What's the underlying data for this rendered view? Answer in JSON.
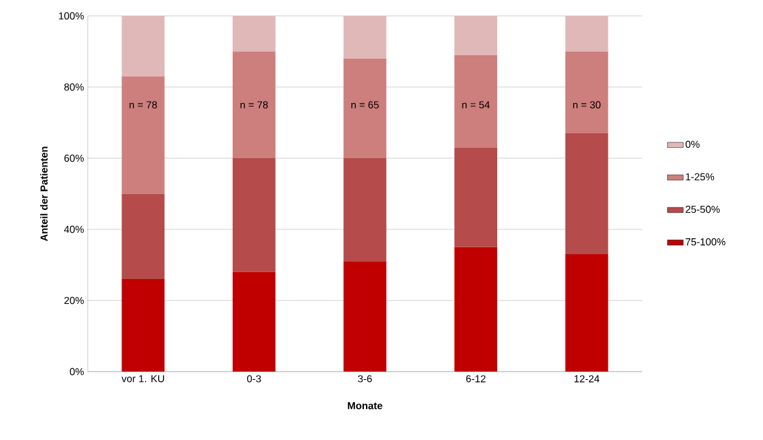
{
  "chart_data": {
    "type": "bar",
    "stacked": true,
    "xlabel": "Monate",
    "ylabel": "Anteil der Patienten",
    "categories": [
      "vor 1. KU",
      "0-3",
      "3-6",
      "6-12",
      "12-24"
    ],
    "series": [
      {
        "name": "75-100%",
        "color": "#c00000",
        "values": [
          26,
          28,
          31,
          35,
          33
        ]
      },
      {
        "name": "25-50%",
        "color": "#b54b4a",
        "values": [
          24,
          32,
          29,
          28,
          34
        ]
      },
      {
        "name": "1-25%",
        "color": "#cd7f7d",
        "values": [
          33,
          30,
          28,
          26,
          23
        ]
      },
      {
        "name": "0%",
        "color": "#e0b8b8",
        "values": [
          17,
          10,
          12,
          11,
          10
        ]
      }
    ],
    "ylim": [
      0,
      100
    ],
    "yticks": [
      {
        "value": 0,
        "label": "0%"
      },
      {
        "value": 20,
        "label": "20%"
      },
      {
        "value": 40,
        "label": "40%"
      },
      {
        "value": 60,
        "label": "60%"
      },
      {
        "value": 80,
        "label": "80%"
      },
      {
        "value": 100,
        "label": "100%"
      }
    ],
    "grid": "y",
    "legend": "right",
    "annotations": [
      "n = 78",
      "n = 78",
      "n = 65",
      "n = 54",
      "n = 30"
    ]
  }
}
